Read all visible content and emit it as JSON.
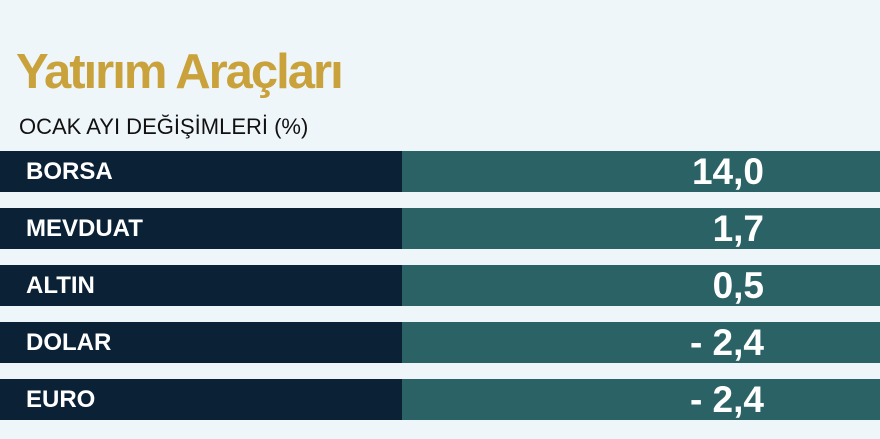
{
  "chart_data": {
    "type": "table",
    "title": "Yatırım Araçları",
    "subtitle": "OCAK AYI DEĞİŞİMLERİ (%)",
    "rows": [
      {
        "label": "BORSA",
        "value": "14,0"
      },
      {
        "label": "MEVDUAT",
        "value": "1,7"
      },
      {
        "label": "ALTIN",
        "value": "0,5"
      },
      {
        "label": "DOLAR",
        "value": "- 2,4"
      },
      {
        "label": "EURO",
        "value": "- 2,4"
      }
    ],
    "colors": {
      "title": "#c9a23c",
      "label_bg": "#0a2136",
      "value_bg": "#2b6266",
      "background": "#eff6fa"
    }
  }
}
